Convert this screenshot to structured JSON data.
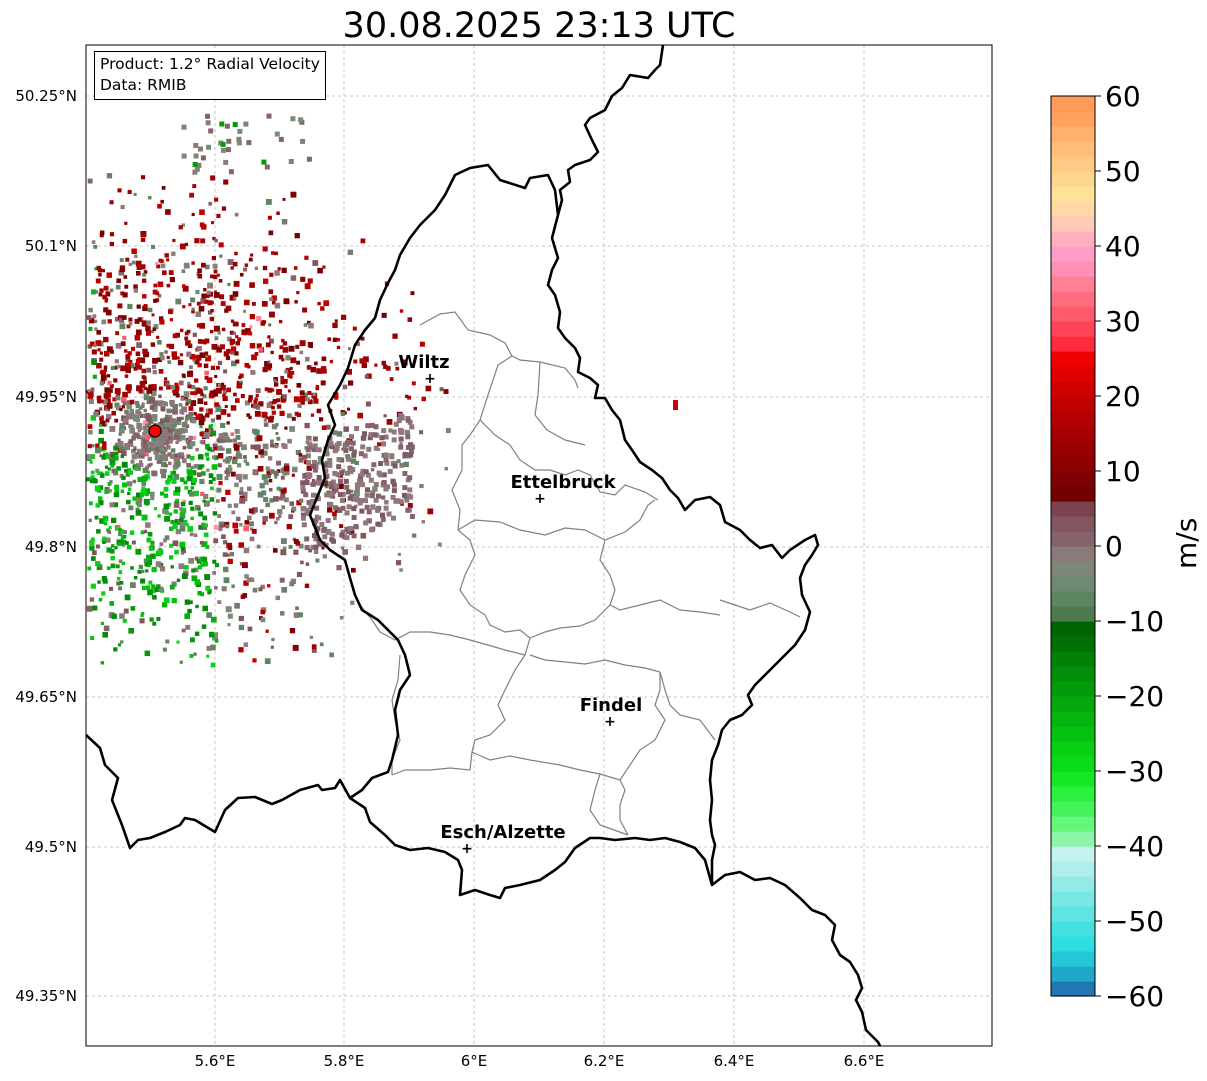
{
  "title": "30.08.2025 23:13 UTC",
  "info": {
    "product": "Product: 1.2° Radial Velocity",
    "data": "Data: RMIB"
  },
  "colorbar": {
    "unit": "m/s",
    "min": -60,
    "max": 60,
    "ticks": [
      "60",
      "50",
      "40",
      "30",
      "20",
      "10",
      "0",
      "−10",
      "−20",
      "−30",
      "−40",
      "−50",
      "−60"
    ],
    "colors": [
      "#1f77b4",
      "#21a8c8",
      "#27c6d6",
      "#2fdfe0",
      "#45e0e0",
      "#5ee4e2",
      "#78e8e6",
      "#93ebe8",
      "#aeefec",
      "#c4f2ef",
      "#8ef5a8",
      "#66f57d",
      "#44f35a",
      "#2cf03d",
      "#16e826",
      "#0adc1a",
      "#08cf14",
      "#06c210",
      "#05b50e",
      "#04a80c",
      "#039b0a",
      "#028e08",
      "#018106",
      "#006f04",
      "#006500",
      "#4f7a50",
      "#5c8660",
      "#6e8a72",
      "#7d8878",
      "#8a7b78",
      "#86636c",
      "#82565e",
      "#7a4450",
      "#720000",
      "#7f0000",
      "#8c0000",
      "#990000",
      "#a60000",
      "#b30000",
      "#c10000",
      "#d00000",
      "#e00000",
      "#f00000",
      "#ff2a3c",
      "#ff4458",
      "#ff5a6c",
      "#ff6e80",
      "#ff7f95",
      "#ff90b4",
      "#ff9cc8",
      "#ffb0bc",
      "#ffc8b8",
      "#ffd8a8",
      "#ffe29a",
      "#ffd690",
      "#ffca84",
      "#ffbe78",
      "#ffb06c",
      "#ffa260",
      "#ff9a58"
    ]
  },
  "axes": {
    "lon_labels": [
      "5.6°E",
      "5.8°E",
      "6°E",
      "6.2°E",
      "6.4°E",
      "6.6°E"
    ],
    "lat_labels": [
      "50.25°N",
      "50.1°N",
      "49.95°N",
      "49.8°N",
      "49.65°N",
      "49.5°N",
      "49.35°N"
    ],
    "grid": true
  },
  "cities": [
    {
      "name": "Wiltz"
    },
    {
      "name": "Ettelbruck"
    },
    {
      "name": "Findel"
    },
    {
      "name": "Esch/Alzette"
    }
  ],
  "radar_site": {
    "color": "#ff0000"
  }
}
